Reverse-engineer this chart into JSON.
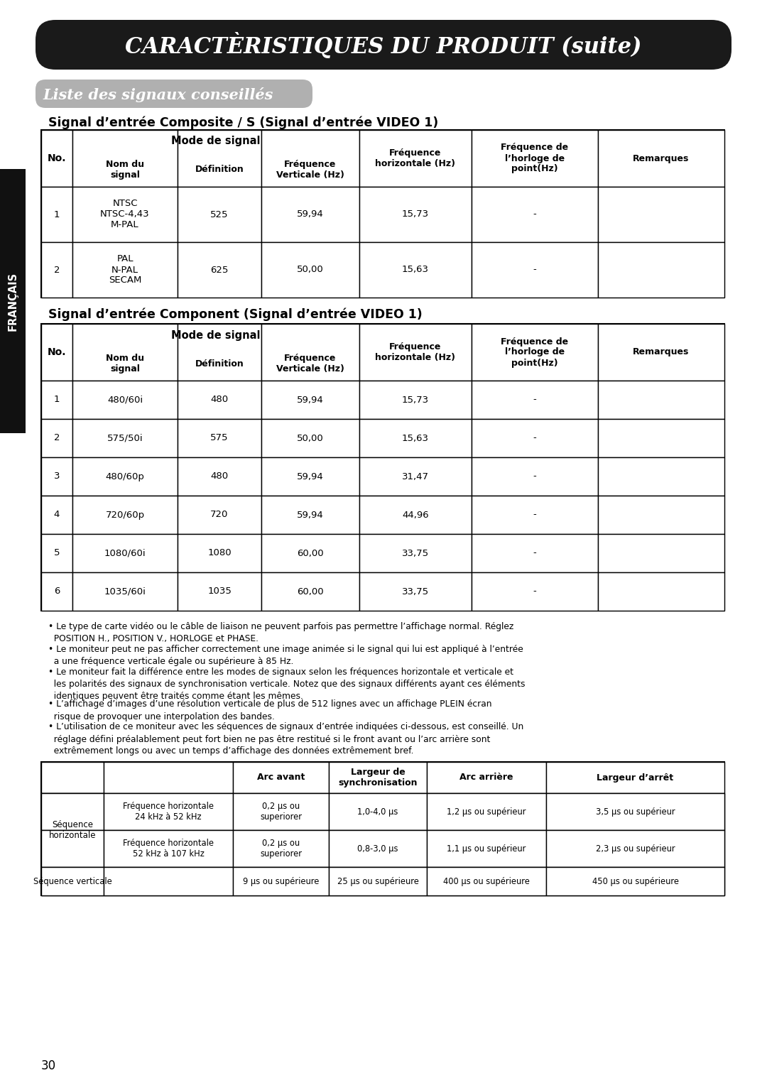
{
  "title_main": "CARACTÈRISTIQUES DU PRODUIT (suite)",
  "subtitle": "Liste des signaux conseillés",
  "section1_title": "Signal d’entrée Composite / S (Signal d’entrée VIDEO 1)",
  "section2_title": "Signal d’entrée Component (Signal d’entrée VIDEO 1)",
  "table_headers": [
    "No.",
    "Nom du\nsignal",
    "Définition",
    "Fréquence\nVerticale (Hz)",
    "Fréquence\nhorizontale (Hz)",
    "Fréquence de\nl’horloge de\npoint(Hz)",
    "Remarques"
  ],
  "table_subheader": "Mode de signal",
  "table1_data": [
    [
      "1",
      "NTSC\nNTSC-4,43\nM-PAL",
      "525",
      "59,94",
      "15,73",
      "-",
      ""
    ],
    [
      "2",
      "PAL\nN-PAL\nSECAM",
      "625",
      "50,00",
      "15,63",
      "-",
      ""
    ]
  ],
  "table2_data": [
    [
      "1",
      "480/60i",
      "480",
      "59,94",
      "15,73",
      "-",
      ""
    ],
    [
      "2",
      "575/50i",
      "575",
      "50,00",
      "15,63",
      "-",
      ""
    ],
    [
      "3",
      "480/60p",
      "480",
      "59,94",
      "31,47",
      "-",
      ""
    ],
    [
      "4",
      "720/60p",
      "720",
      "59,94",
      "44,96",
      "-",
      ""
    ],
    [
      "5",
      "1080/60i",
      "1080",
      "60,00",
      "33,75",
      "-",
      ""
    ],
    [
      "6",
      "1035/60i",
      "1035",
      "60,00",
      "33,75",
      "-",
      ""
    ]
  ],
  "bullets": [
    "• Le type de carte vidéo ou le câble de liaison ne peuvent parfois pas permettre l’affichage normal. Réglez\n  POSITION H., POSITION V., HORLOGE et PHASE.",
    "• Le moniteur peut ne pas afficher correctement une image animée si le signal qui lui est appliqué à l’entrée\n  a une fréquence verticale égale ou supérieure à 85 Hz.",
    "• Le moniteur fait la différence entre les modes de signaux selon les fréquences horizontale et verticale et\n  les polarités des signaux de synchronisation verticale. Notez que des signaux différents ayant ces éléments\n  identiques peuvent être traités comme étant les mêmes.",
    "• L’affichage d’images d’une résolution verticale de plus de 512 lignes avec un affichage PLEIN écran\n  risque de provoquer une interpolation des bandes.",
    "• L’utilisation de ce moniteur avec les séquences de signaux d’entrée indiquées ci-dessous, est conseillé. Un\n  réglage défini préalablement peut fort bien ne pas être restitué si le front avant ou l’arc arrière sont\n  extrêmement longs ou avec un temps d’affichage des données extrêmement bref."
  ],
  "sync_col_headers": [
    "",
    "",
    "Arc avant",
    "Largeur de\nsynchronisation",
    "Arc arrière",
    "Largeur d’arrêt"
  ],
  "sync_rows": [
    [
      "Séquence\nhorizontale",
      "Fréquence horizontale\n24 kHz à 52 kHz",
      "0,2 μs ou\nsuperiorer",
      "1,0-4,0 μs",
      "1,2 μs ou supérieur",
      "3,5 μs ou supérieur"
    ],
    [
      "",
      "Fréquence horizontale\n52 kHz à 107 kHz",
      "0,2 μs ou\nsuperiorer",
      "0,8-3,0 μs",
      "1,1 μs ou supérieur",
      "2,3 μs ou supérieur"
    ],
    [
      "Séquence verticale",
      "",
      "9 μs ou supérieure",
      "25 μs ou supérieure",
      "400 μs ou supérieure",
      "450 μs ou supérieure"
    ]
  ],
  "page_number": "30",
  "sidebar_text": "FRANÇAIS",
  "bg_color": "#ffffff",
  "title_bg": "#1a1a1a",
  "title_fg": "#ffffff",
  "subtitle_bg": "#b0b0b0"
}
